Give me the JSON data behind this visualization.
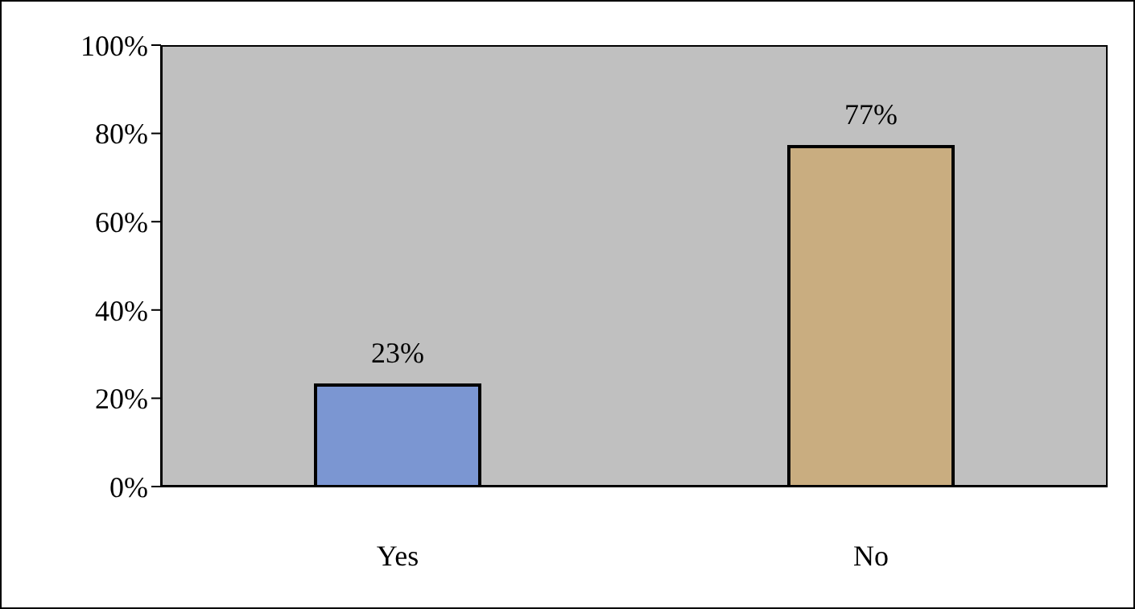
{
  "chart_data": {
    "type": "bar",
    "categories": [
      "Yes",
      "No"
    ],
    "values": [
      23,
      77
    ],
    "colors": [
      "#7b96d2",
      "#c9ad80"
    ],
    "value_labels": [
      "23%",
      "77%"
    ],
    "ylim": [
      0,
      100
    ],
    "yticks": [
      {
        "value": 0,
        "label": "0%"
      },
      {
        "value": 20,
        "label": "20%"
      },
      {
        "value": 40,
        "label": "40%"
      },
      {
        "value": 60,
        "label": "60%"
      },
      {
        "value": 80,
        "label": "80%"
      },
      {
        "value": 100,
        "label": "100%"
      }
    ],
    "grid": false
  }
}
